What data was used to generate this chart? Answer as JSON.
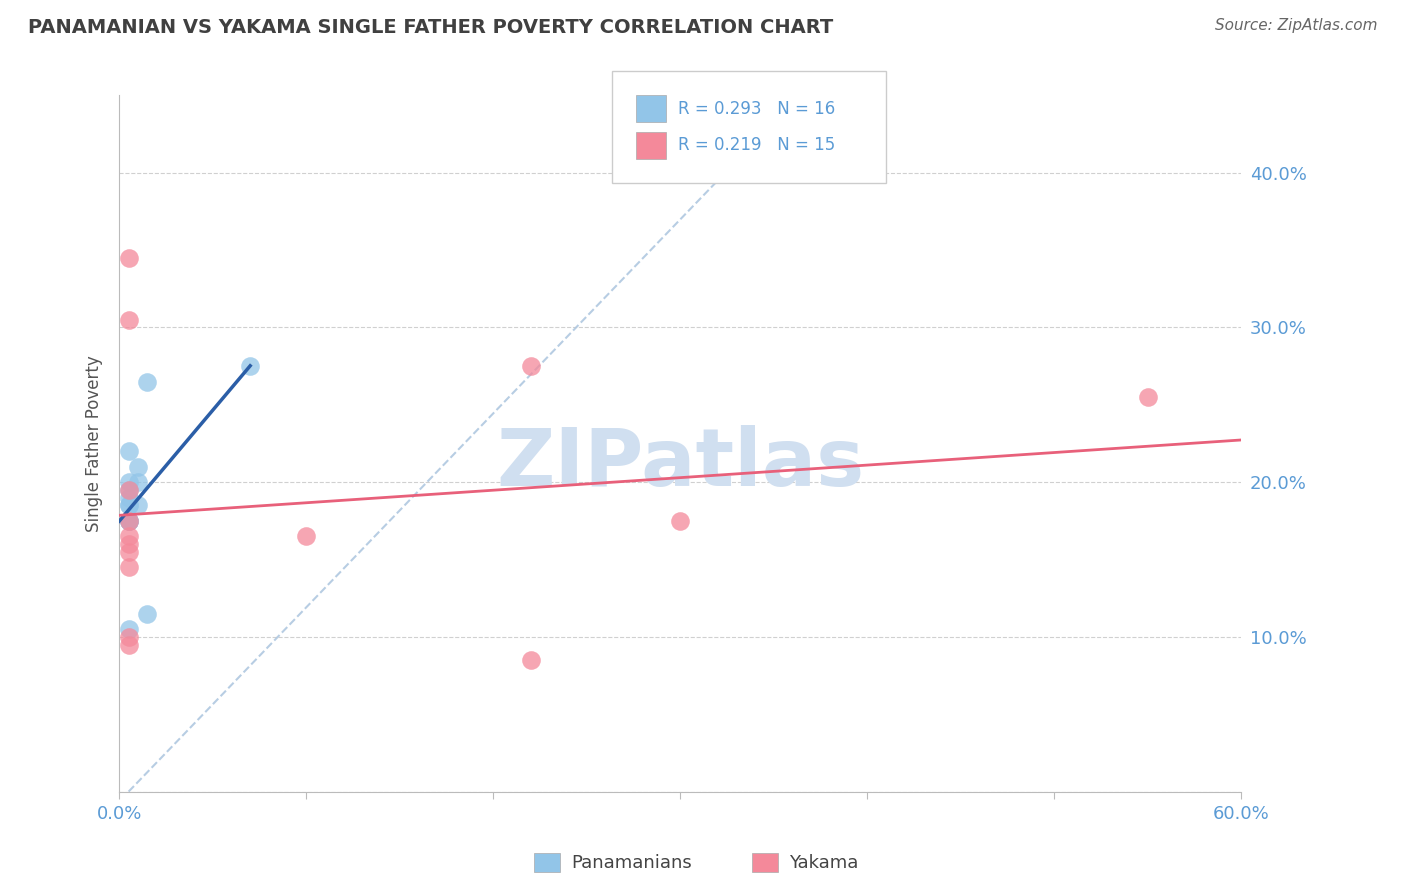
{
  "title": "PANAMANIAN VS YAKAMA SINGLE FATHER POVERTY CORRELATION CHART",
  "source": "Source: ZipAtlas.com",
  "ylabel": "Single Father Poverty",
  "watermark": "ZIPatlas",
  "xlim": [
    0.0,
    0.6
  ],
  "ylim": [
    0.0,
    0.45
  ],
  "panamanian_x": [
    0.005,
    0.005,
    0.005,
    0.005,
    0.005,
    0.005,
    0.005,
    0.005,
    0.005,
    0.01,
    0.01,
    0.01,
    0.015,
    0.015,
    0.07,
    0.005
  ],
  "panamanian_y": [
    0.19,
    0.195,
    0.2,
    0.175,
    0.185,
    0.185,
    0.175,
    0.175,
    0.22,
    0.21,
    0.2,
    0.185,
    0.265,
    0.115,
    0.275,
    0.105
  ],
  "yakama_x": [
    0.005,
    0.005,
    0.005,
    0.005,
    0.005,
    0.005,
    0.005,
    0.1,
    0.22,
    0.22,
    0.3,
    0.55,
    0.005,
    0.005,
    0.005
  ],
  "yakama_y": [
    0.345,
    0.305,
    0.195,
    0.165,
    0.16,
    0.155,
    0.145,
    0.165,
    0.275,
    0.085,
    0.175,
    0.255,
    0.095,
    0.1,
    0.175
  ],
  "blue_color": "#92C5E8",
  "pink_color": "#F4899A",
  "blue_line_color": "#2B5EA7",
  "pink_line_color": "#E8607A",
  "dashed_line_color": "#B0C8E0",
  "grid_color": "#D0D0D0",
  "title_color": "#404040",
  "axis_label_color": "#5B9BD5",
  "legend_R_color": "#5B9BD5",
  "watermark_color": "#D0DFF0",
  "bg_color": "#FFFFFF",
  "legend_blue_R": "0.293",
  "legend_blue_N": "16",
  "legend_pink_R": "0.219",
  "legend_pink_N": "15"
}
